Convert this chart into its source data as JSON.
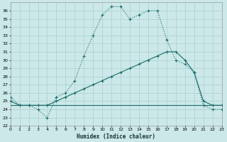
{
  "xlabel": "Humidex (Indice chaleur)",
  "bg_color": "#cce8e8",
  "grid_color": "#afd4d4",
  "line_color": "#1a6b6b",
  "ylim": [
    22,
    37
  ],
  "xlim": [
    0,
    23
  ],
  "yticks": [
    22,
    23,
    24,
    25,
    26,
    27,
    28,
    29,
    30,
    31,
    32,
    33,
    34,
    35,
    36
  ],
  "xticks": [
    0,
    1,
    2,
    3,
    4,
    5,
    6,
    7,
    8,
    9,
    10,
    11,
    12,
    13,
    14,
    15,
    16,
    17,
    18,
    19,
    20,
    21,
    22,
    23
  ],
  "series1_x": [
    0,
    1,
    2,
    3,
    4,
    5,
    6,
    7,
    8,
    9,
    10,
    11,
    12,
    13,
    14,
    15,
    16,
    17,
    18,
    19,
    20,
    21,
    22,
    23
  ],
  "series1_y": [
    25.5,
    24.5,
    24.5,
    24.0,
    23.0,
    25.5,
    26.0,
    27.5,
    30.5,
    33.0,
    35.5,
    36.5,
    36.5,
    35.0,
    35.5,
    36.0,
    36.0,
    32.5,
    30.0,
    29.5,
    28.5,
    24.5,
    24.0,
    24.0
  ],
  "series2_x": [
    0,
    1,
    2,
    3,
    4,
    5,
    6,
    7,
    8,
    9,
    10,
    11,
    12,
    13,
    14,
    15,
    16,
    17,
    18,
    19,
    20,
    21,
    22,
    23
  ],
  "series2_y": [
    25.0,
    24.5,
    24.5,
    24.5,
    24.5,
    25.0,
    25.5,
    26.0,
    26.5,
    27.0,
    27.5,
    28.0,
    28.5,
    29.0,
    29.5,
    30.0,
    30.5,
    31.0,
    31.0,
    30.0,
    28.5,
    25.0,
    24.5,
    24.5
  ],
  "series3_x": [
    0,
    23
  ],
  "series3_y": [
    24.5,
    24.5
  ]
}
